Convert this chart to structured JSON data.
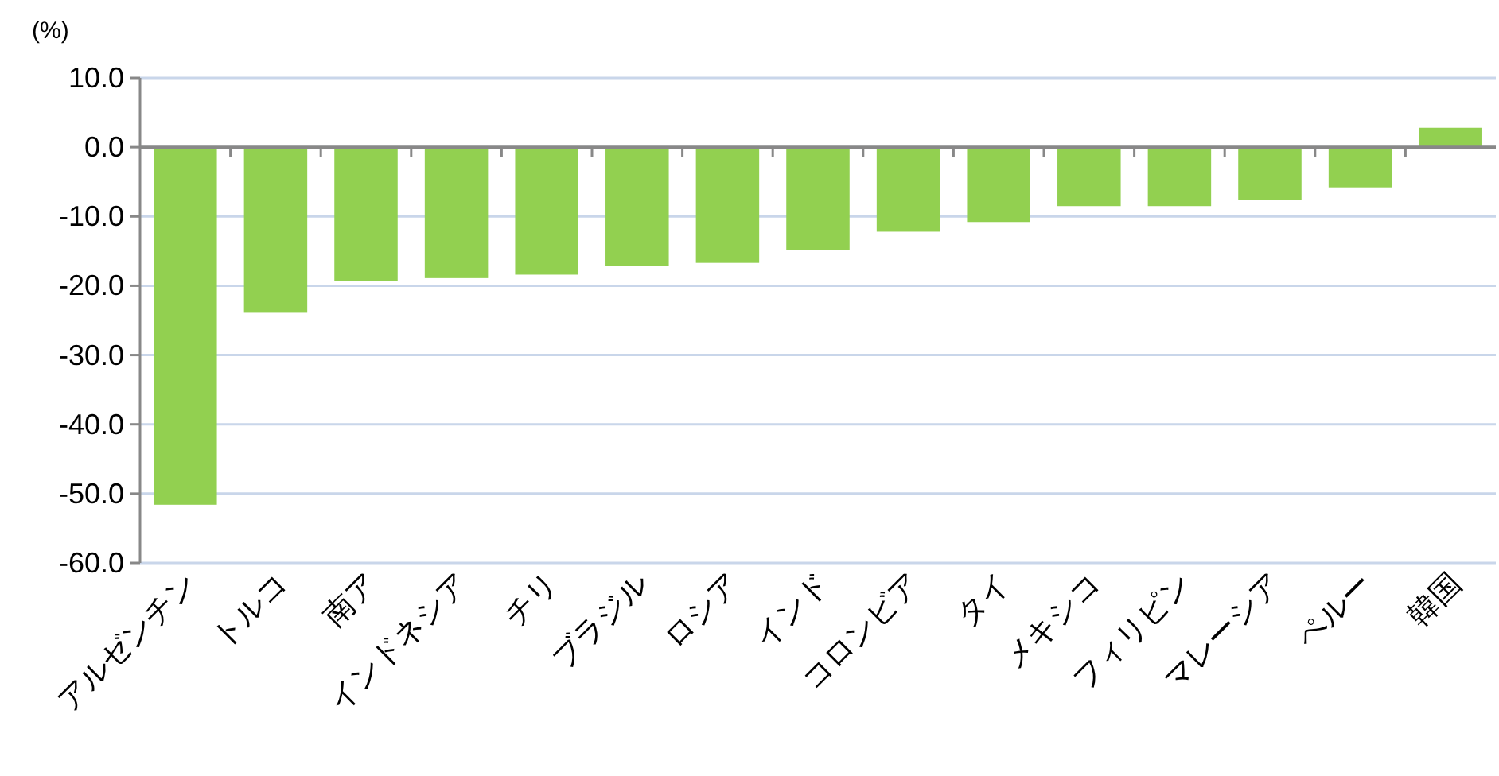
{
  "chart_data": {
    "type": "bar",
    "ylabel": "(%)",
    "categories": [
      "アルゼンチン",
      "トルコ",
      "南ア",
      "インドネシア",
      "チリ",
      "ブラジル",
      "ロシア",
      "インド",
      "コロンビア",
      "タイ",
      "メキシコ",
      "フィリピン",
      "マレーシア",
      "ペルー",
      "韓国"
    ],
    "values": [
      -51.6,
      -23.9,
      -19.3,
      -18.9,
      -18.4,
      -17.1,
      -16.7,
      -14.9,
      -12.2,
      -10.8,
      -8.5,
      -8.5,
      -7.6,
      -5.8,
      2.8
    ],
    "color": "#92d050",
    "ylim": [
      -60,
      10
    ],
    "yticks": [
      {
        "value": -60,
        "label": "-60.0"
      },
      {
        "value": -50,
        "label": "-50.0"
      },
      {
        "value": -40,
        "label": "-40.0"
      },
      {
        "value": -30,
        "label": "-30.0"
      },
      {
        "value": -20,
        "label": "-20.0"
      },
      {
        "value": -10,
        "label": "-10.0"
      },
      {
        "value": 0,
        "label": "0.0"
      },
      {
        "value": 10,
        "label": "10.0"
      }
    ],
    "grid": "y"
  }
}
